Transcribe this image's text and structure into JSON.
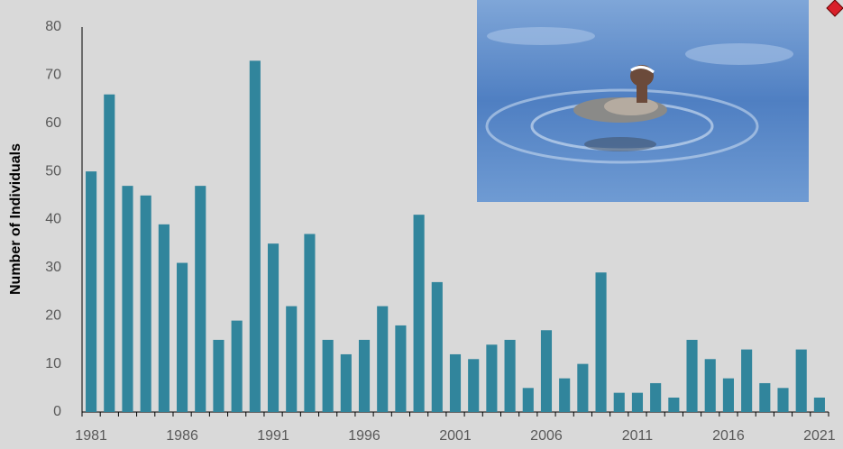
{
  "chart_data": {
    "type": "bar",
    "y_label": "Number of Individuals",
    "categories": [
      "1981",
      null,
      null,
      null,
      null,
      "1986",
      null,
      null,
      null,
      null,
      "1991",
      null,
      null,
      null,
      null,
      "1996",
      null,
      null,
      null,
      null,
      "2001",
      null,
      null,
      null,
      null,
      "2006",
      null,
      null,
      null,
      null,
      "2011",
      null,
      null,
      null,
      null,
      "2016",
      null,
      null,
      null,
      null,
      "2021"
    ],
    "values": [
      50,
      66,
      47,
      45,
      39,
      31,
      47,
      15,
      19,
      73,
      35,
      22,
      37,
      15,
      12,
      15,
      22,
      18,
      41,
      27,
      12,
      11,
      14,
      15,
      5,
      17,
      7,
      10,
      29,
      4,
      4,
      6,
      3,
      15,
      11,
      7,
      13,
      6,
      5,
      13,
      3
    ],
    "color": "#31859c",
    "ylim": [
      0,
      80
    ],
    "yticks": [
      0,
      10,
      20,
      30,
      40,
      50,
      60,
      70,
      80
    ],
    "grid": false
  }
}
